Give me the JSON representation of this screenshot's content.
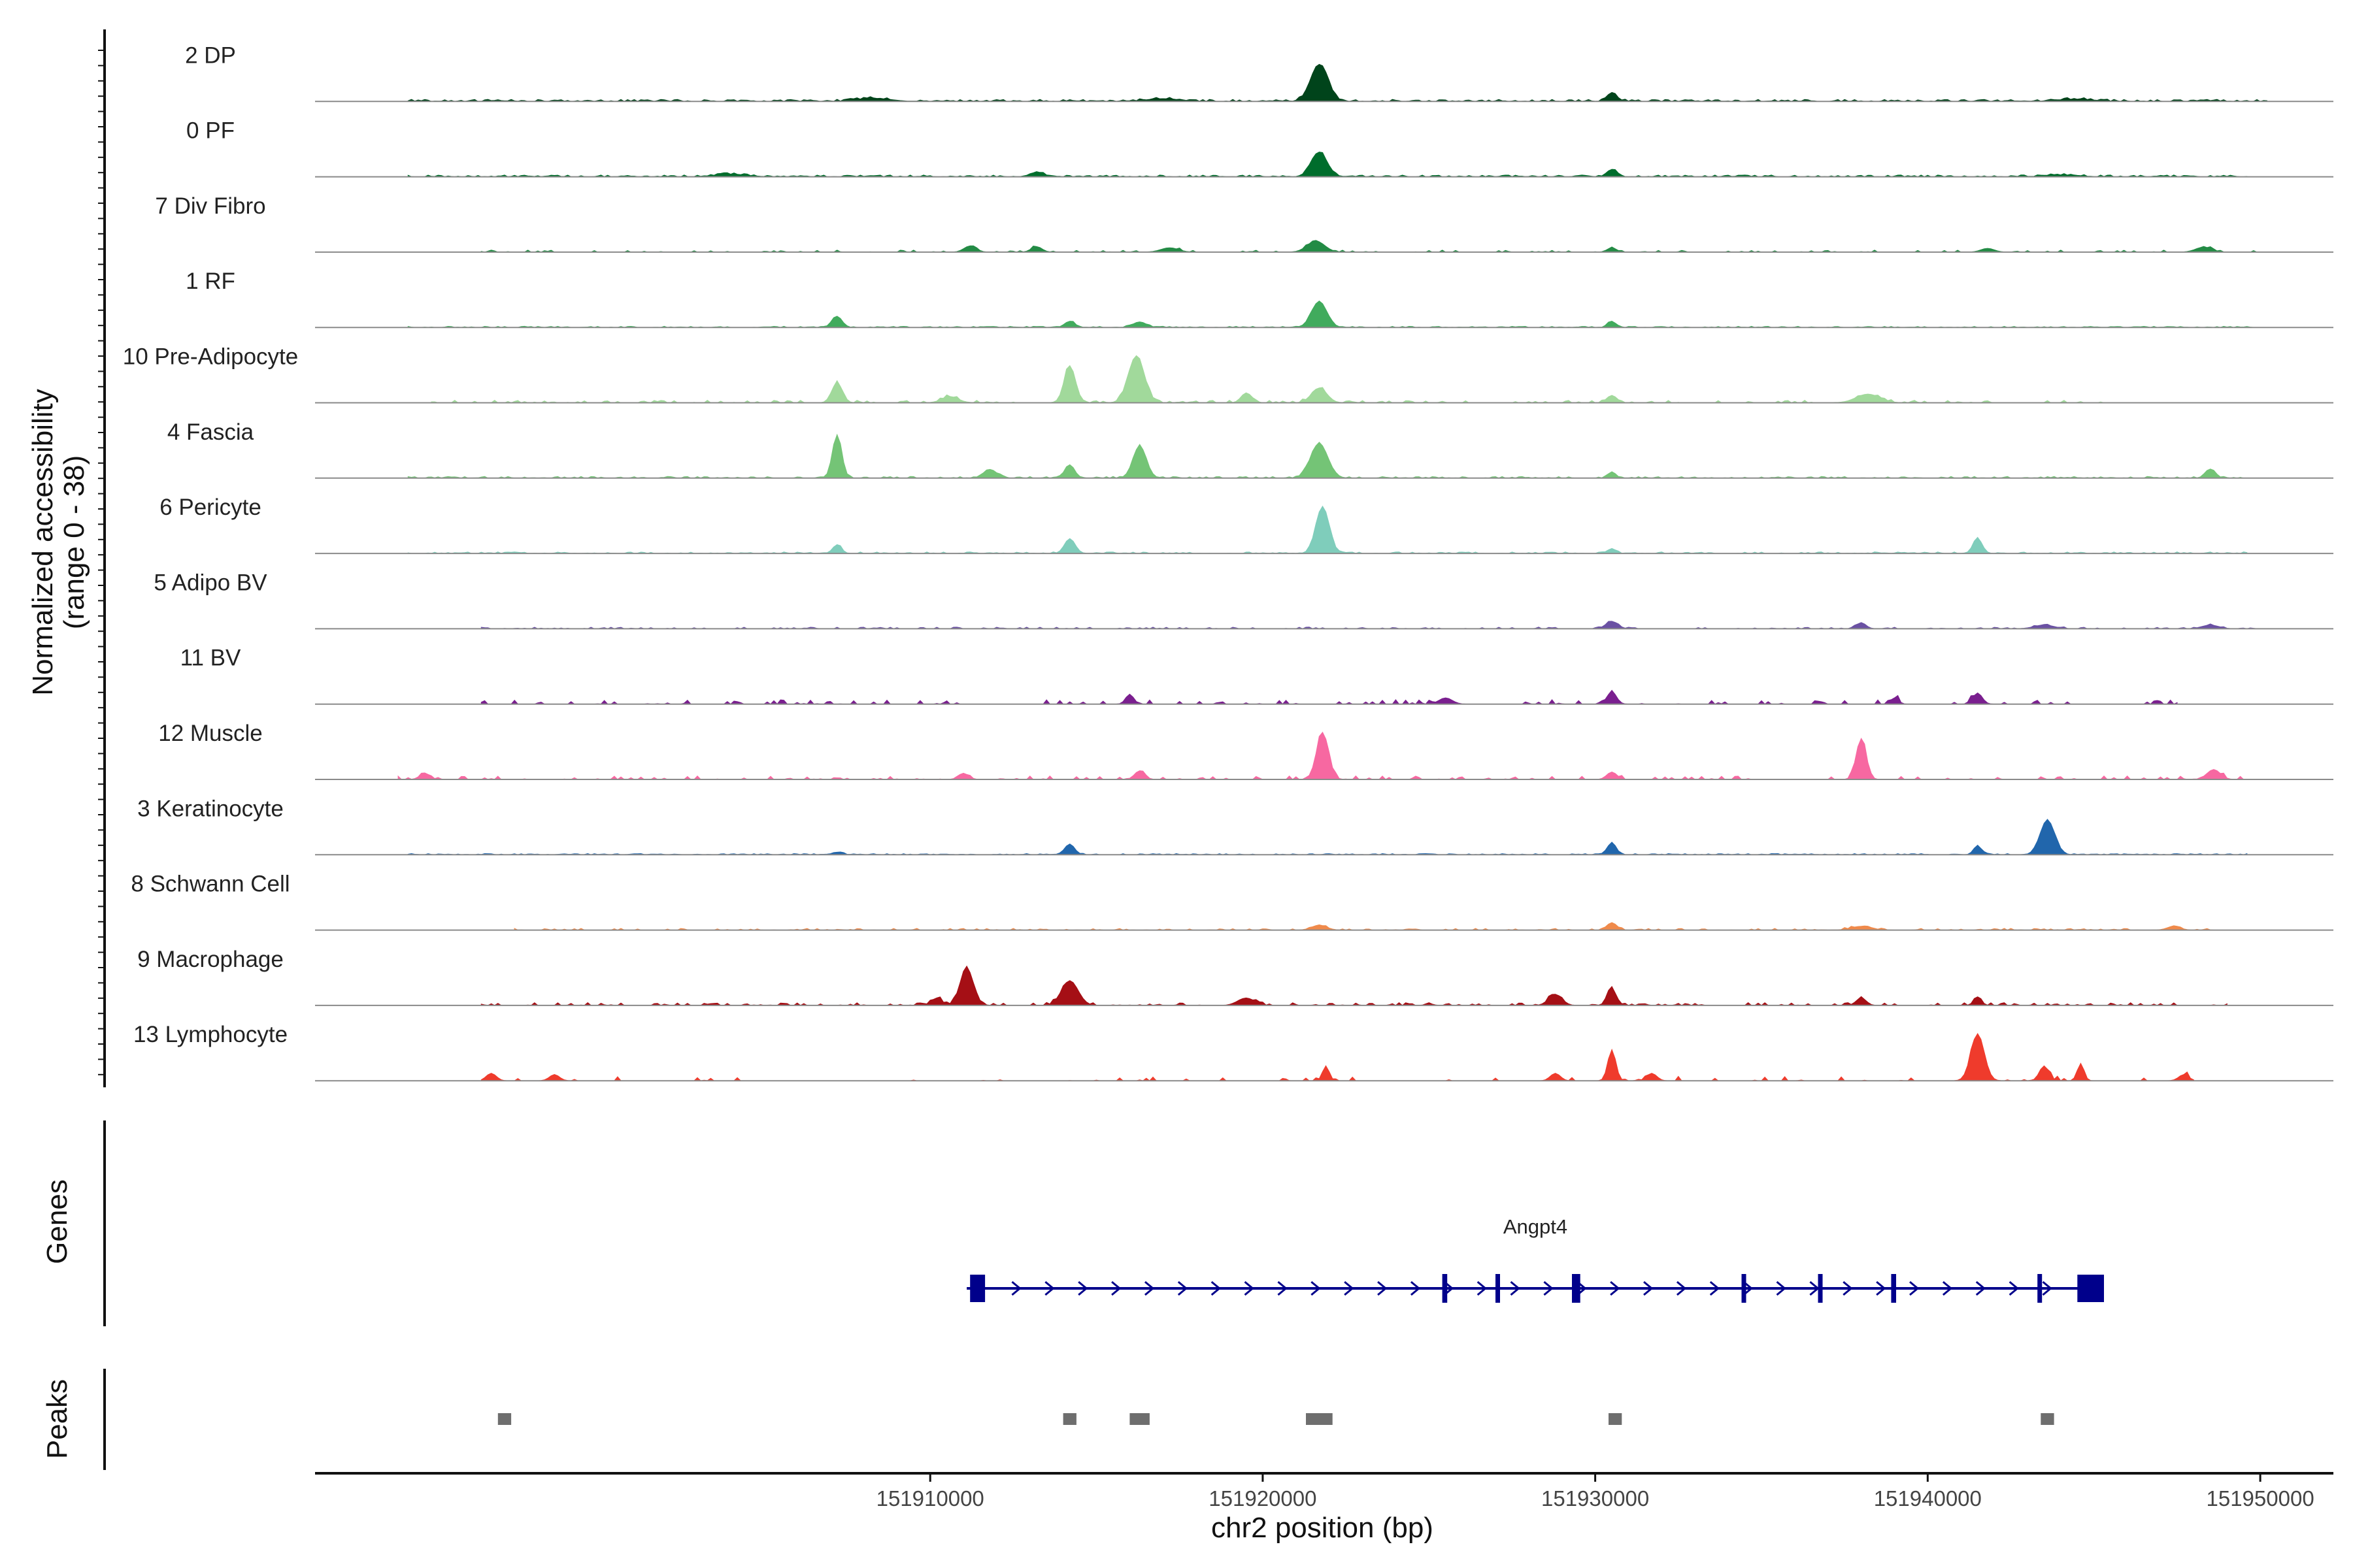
{
  "chart_data": {
    "type": "area",
    "ylabel_line1": "Normalized accessibility",
    "ylabel_line2": "(range 0 - 38)",
    "yrange": [
      0,
      38
    ],
    "xlabel": "chr2 position (bp)",
    "xlim": [
      151891500,
      151952200
    ],
    "xticks": [
      {
        "value": 151910000,
        "label": "151910000"
      },
      {
        "value": 151920000,
        "label": "151920000"
      },
      {
        "value": 151930000,
        "label": "151930000"
      },
      {
        "value": 151940000,
        "label": "151940000"
      },
      {
        "value": 151950000,
        "label": "151950000"
      }
    ],
    "tracks": [
      {
        "name": "2 DP",
        "color": "#00441b",
        "range": [
          151894300,
          151950200
        ],
        "noise": 1.6,
        "density": 0.75,
        "peaks": [
          [
            151921700,
            30,
            260
          ],
          [
            151930500,
            7,
            150
          ],
          [
            151908300,
            2.5,
            500
          ],
          [
            151917000,
            2.2,
            500
          ],
          [
            151944500,
            1.8,
            500
          ]
        ]
      },
      {
        "name": "0 PF",
        "color": "#006d2c",
        "range": [
          151894300,
          151949600
        ],
        "noise": 1.4,
        "density": 0.72,
        "peaks": [
          [
            151921700,
            20,
            240
          ],
          [
            151930500,
            6,
            150
          ],
          [
            151913200,
            3.5,
            200
          ],
          [
            151904000,
            2,
            500
          ],
          [
            151944000,
            1.5,
            500
          ]
        ]
      },
      {
        "name": "7 Div Fibro",
        "color": "#238b45",
        "range": [
          151896500,
          151950000
        ],
        "noise": 1.6,
        "density": 0.25,
        "peaks": [
          [
            151921600,
            9,
            260
          ],
          [
            151911200,
            5,
            180
          ],
          [
            151913200,
            4.5,
            160
          ],
          [
            151917200,
            3.5,
            260
          ],
          [
            151930500,
            3.5,
            140
          ],
          [
            151941800,
            3,
            200
          ],
          [
            151948300,
            4,
            240
          ]
        ]
      },
      {
        "name": "1 RF",
        "color": "#41ab5d",
        "range": [
          151894300,
          151950200
        ],
        "noise": 0.9,
        "density": 0.6,
        "peaks": [
          [
            151921700,
            21,
            230
          ],
          [
            151907200,
            9,
            150
          ],
          [
            151914200,
            5,
            150
          ],
          [
            151916300,
            4.5,
            200
          ],
          [
            151930500,
            5,
            120
          ]
        ]
      },
      {
        "name": "10 Pre-Adipocyte",
        "color": "#a1d99b",
        "range": [
          151895000,
          151945500
        ],
        "noise": 2.0,
        "density": 0.35,
        "peaks": [
          [
            151914200,
            30,
            170
          ],
          [
            151916200,
            38,
            240
          ],
          [
            151907200,
            16,
            160
          ],
          [
            151921700,
            12,
            230
          ],
          [
            151930500,
            6,
            150
          ],
          [
            151938200,
            7,
            350
          ],
          [
            151919500,
            8,
            150
          ],
          [
            151910600,
            5,
            250
          ]
        ]
      },
      {
        "name": "4 Fascia",
        "color": "#74c476",
        "range": [
          151894300,
          151949600
        ],
        "noise": 1.3,
        "density": 0.55,
        "peaks": [
          [
            151907200,
            35,
            140
          ],
          [
            151921700,
            28,
            260
          ],
          [
            151916300,
            26,
            200
          ],
          [
            151914200,
            10,
            150
          ],
          [
            151911800,
            7,
            200
          ],
          [
            151948500,
            7,
            150
          ],
          [
            151930500,
            5,
            120
          ]
        ]
      },
      {
        "name": "6 Pericyte",
        "color": "#7fcdbb",
        "range": [
          151894300,
          151949600
        ],
        "noise": 1.2,
        "density": 0.5,
        "peaks": [
          [
            151921800,
            38,
            200
          ],
          [
            151914200,
            12,
            160
          ],
          [
            151941500,
            12,
            140
          ],
          [
            151907200,
            7,
            130
          ],
          [
            151930500,
            4,
            120
          ]
        ]
      },
      {
        "name": "5 Adipo BV",
        "color": "#6a51a3",
        "range": [
          151896500,
          151950000
        ],
        "noise": 1.3,
        "density": 0.4,
        "peaks": [
          [
            151930500,
            6,
            180
          ],
          [
            151938000,
            5,
            140
          ],
          [
            151943500,
            3,
            300
          ],
          [
            151948500,
            3,
            250
          ]
        ]
      },
      {
        "name": "11 BV",
        "color": "#7a1f8f",
        "range": [
          151896500,
          151947500
        ],
        "noise": 3.5,
        "density": 0.25,
        "peaks": [
          [
            151930500,
            10,
            140
          ],
          [
            151941500,
            9,
            140
          ],
          [
            151916000,
            8,
            120
          ],
          [
            151939000,
            5,
            120
          ],
          [
            151925500,
            5,
            200
          ]
        ]
      },
      {
        "name": "12 Muscle",
        "color": "#f768a1",
        "range": [
          151894000,
          151949500
        ],
        "noise": 2.8,
        "density": 0.25,
        "peaks": [
          [
            151921800,
            38,
            180
          ],
          [
            151938000,
            33,
            150
          ],
          [
            151916300,
            7,
            150
          ],
          [
            151930500,
            6,
            150
          ],
          [
            151948600,
            8,
            200
          ],
          [
            151911000,
            5,
            150
          ],
          [
            151894800,
            5,
            150
          ]
        ]
      },
      {
        "name": "3 Keratinocyte",
        "color": "#2166ac",
        "range": [
          151894300,
          151949600
        ],
        "noise": 0.9,
        "density": 0.75,
        "peaks": [
          [
            151943600,
            28,
            220
          ],
          [
            151914200,
            8,
            150
          ],
          [
            151930500,
            10,
            130
          ],
          [
            151941500,
            7,
            120
          ],
          [
            151907200,
            2,
            150
          ]
        ]
      },
      {
        "name": "8 Schwann Cell",
        "color": "#f08a4b",
        "range": [
          151897500,
          151949000
        ],
        "noise": 1.3,
        "density": 0.35,
        "peaks": [
          [
            151930500,
            6,
            150
          ],
          [
            151921700,
            4,
            220
          ],
          [
            151938000,
            3,
            300
          ],
          [
            151947400,
            3,
            200
          ]
        ]
      },
      {
        "name": "9 Macrophage",
        "color": "#a50f15",
        "range": [
          151896500,
          151949000
        ],
        "noise": 2.2,
        "density": 0.35,
        "peaks": [
          [
            151911100,
            30,
            200
          ],
          [
            151914200,
            20,
            250
          ],
          [
            151930500,
            13,
            140
          ],
          [
            151928800,
            9,
            200
          ],
          [
            151919500,
            6,
            250
          ],
          [
            151938000,
            6,
            150
          ],
          [
            151941500,
            6,
            120
          ],
          [
            151910200,
            6,
            150
          ]
        ]
      },
      {
        "name": "13 Lymphocyte",
        "color": "#ef3b2c",
        "range": [
          151896500,
          151948000
        ],
        "noise": 3.5,
        "density": 0.1,
        "peaks": [
          [
            151941500,
            38,
            200
          ],
          [
            151930500,
            25,
            120
          ],
          [
            151944600,
            14,
            100
          ],
          [
            151943500,
            12,
            140
          ],
          [
            151921900,
            12,
            100
          ],
          [
            151896800,
            6,
            150
          ],
          [
            151898700,
            5,
            150
          ],
          [
            151931700,
            6,
            150
          ],
          [
            151928800,
            6,
            150
          ],
          [
            151947700,
            5,
            150
          ]
        ]
      }
    ],
    "genes_label": "Genes",
    "gene": {
      "name": "Angpt4",
      "color": "#00008b",
      "start": 151911100,
      "end": 151945300,
      "strand": "+",
      "exons": [
        [
          151911200,
          151911650
        ],
        [
          151925400,
          151925550
        ],
        [
          151927000,
          151927100
        ],
        [
          151929300,
          151929550
        ],
        [
          151934400,
          151934500
        ],
        [
          151936700,
          151936800
        ],
        [
          151938900,
          151939050
        ],
        [
          151943300,
          151943400
        ],
        [
          151944500,
          151945300
        ]
      ]
    },
    "peaks_label": "Peaks",
    "peaks_color": "#6e6e6e",
    "peaks": [
      [
        151897000,
        151897400
      ],
      [
        151914000,
        151914400
      ],
      [
        151916000,
        151916600
      ],
      [
        151921300,
        151922100
      ],
      [
        151930400,
        151930800
      ],
      [
        151943400,
        151943800
      ]
    ]
  }
}
